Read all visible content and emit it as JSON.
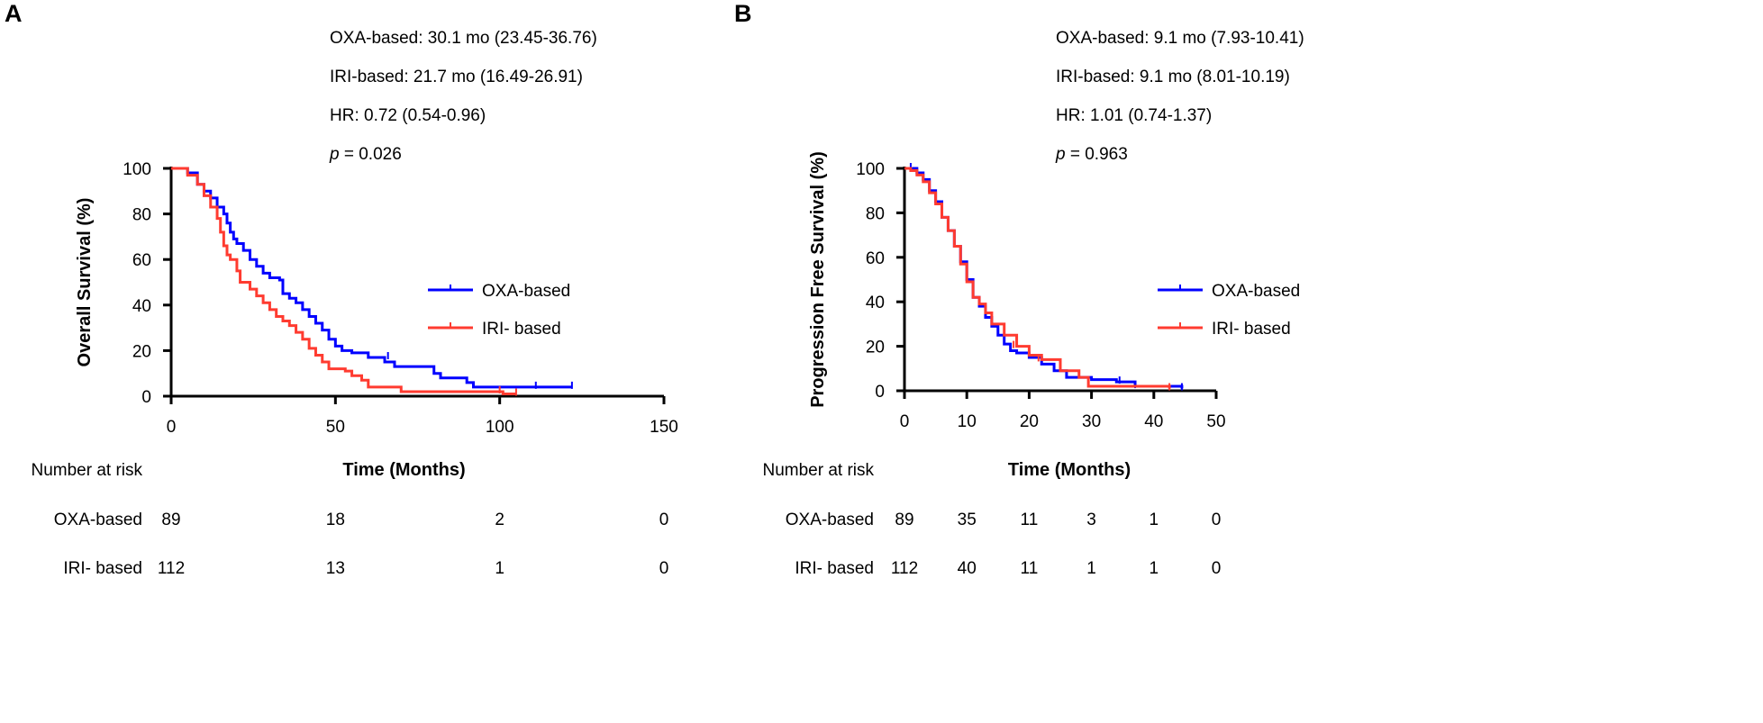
{
  "colors": {
    "oxa": "#0000ff",
    "iri": "#ff3b30"
  },
  "chart_data": [
    {
      "panel": "A",
      "type": "line",
      "ylabel": "Overall Survival (%)",
      "xlabel": "Time (Months)",
      "xlim": [
        0,
        150
      ],
      "ylim": [
        0,
        100
      ],
      "xticks": [
        "0",
        "50",
        "100",
        "150"
      ],
      "yticks": [
        "0",
        "20",
        "40",
        "60",
        "80",
        "100"
      ],
      "stats": [
        "OXA-based: 30.1 mo (23.45-36.76)",
        "IRI-based: 21.7 mo (16.49-26.91)",
        "HR: 0.72 (0.54-0.96)"
      ],
      "p_label": "p",
      "p_value": " = 0.026",
      "legend": [
        "OXA-based",
        "IRI- based"
      ],
      "legend_position": "center-right",
      "series": [
        {
          "name": "OXA-based",
          "x": [
            0,
            5,
            8,
            10,
            12,
            14,
            16,
            17,
            18,
            19,
            20,
            22,
            24,
            26,
            28,
            30,
            33,
            34,
            36,
            38,
            40,
            42,
            44,
            46,
            48,
            50,
            52,
            55,
            60,
            65,
            68,
            75,
            80,
            82,
            90,
            92,
            122
          ],
          "y": [
            100,
            98,
            93,
            90,
            87,
            83,
            80,
            76,
            72,
            69,
            67,
            64,
            60,
            57,
            54,
            52,
            51,
            45,
            43,
            41,
            38,
            35,
            32,
            29,
            25,
            22,
            20,
            19,
            17,
            15,
            13,
            13,
            10,
            8,
            6,
            4,
            4
          ],
          "censored": [
            [
              66,
              17
            ],
            [
              111,
              4
            ],
            [
              122,
              4
            ]
          ]
        },
        {
          "name": "IRI- based",
          "x": [
            0,
            5,
            8,
            10,
            12,
            14,
            15,
            16,
            17,
            18,
            20,
            21,
            24,
            26,
            28,
            30,
            32,
            34,
            36,
            38,
            40,
            42,
            44,
            46,
            48,
            53,
            55,
            58,
            60,
            62,
            70,
            100,
            101,
            105
          ],
          "y": [
            100,
            97,
            93,
            88,
            83,
            78,
            72,
            66,
            62,
            60,
            55,
            50,
            47,
            44,
            41,
            38,
            35,
            33,
            31,
            28,
            25,
            21,
            18,
            15,
            12,
            11,
            9,
            7,
            4,
            4,
            2,
            2,
            1,
            1
          ],
          "censored": [
            [
              100,
              2
            ],
            [
              105,
              1
            ]
          ]
        }
      ],
      "risk_table": {
        "title": "Number at risk",
        "times": [
          0,
          50,
          100,
          150
        ],
        "rows": [
          {
            "label": "OXA-based",
            "values": [
              "89",
              "18",
              "2",
              "0"
            ]
          },
          {
            "label": "IRI- based",
            "values": [
              "112",
              "13",
              "1",
              "0"
            ]
          }
        ]
      }
    },
    {
      "panel": "B",
      "type": "line",
      "ylabel": "Progression Free Survival (%)",
      "xlabel": "Time (Months)",
      "xlim": [
        0,
        50
      ],
      "ylim": [
        0,
        100
      ],
      "xticks": [
        "0",
        "10",
        "20",
        "30",
        "40",
        "50"
      ],
      "yticks": [
        "0",
        "20",
        "40",
        "60",
        "80",
        "100"
      ],
      "stats": [
        "OXA-based: 9.1 mo (7.93-10.41)",
        "IRI-based: 9.1 mo (8.01-10.19)",
        "HR: 1.01 (0.74-1.37)"
      ],
      "p_label": "p",
      "p_value": " = 0.963",
      "legend": [
        "OXA-based",
        "IRI- based"
      ],
      "legend_position": "center-right",
      "series": [
        {
          "name": "OXA-based",
          "x": [
            0,
            1,
            2,
            3,
            4,
            5,
            6,
            7,
            8,
            9,
            10,
            11,
            12,
            13,
            14,
            15,
            16,
            17,
            18,
            20,
            22,
            24,
            26,
            30,
            34,
            37,
            44.5
          ],
          "y": [
            100,
            100,
            98,
            95,
            90,
            85,
            78,
            72,
            65,
            58,
            50,
            42,
            38,
            33,
            29,
            25,
            21,
            18,
            17,
            15,
            12,
            9,
            6,
            5,
            4,
            2,
            1
          ],
          "censored": [
            [
              1,
              100
            ],
            [
              34.5,
              4
            ],
            [
              37,
              2
            ],
            [
              44.5,
              1
            ]
          ]
        },
        {
          "name": "IRI- based",
          "x": [
            0,
            1,
            2,
            3,
            4,
            5,
            6,
            7,
            8,
            9,
            10,
            11,
            12,
            13,
            14,
            16,
            18,
            20,
            22,
            25,
            28,
            29.5,
            42.5
          ],
          "y": [
            100,
            99,
            97,
            94,
            89,
            84,
            78,
            72,
            65,
            57,
            49,
            42,
            39,
            35,
            30,
            25,
            20,
            16,
            14,
            9,
            6,
            2,
            1
          ],
          "censored": [
            [
              17.5,
              20
            ],
            [
              21.5,
              14
            ],
            [
              42.5,
              1
            ]
          ]
        }
      ],
      "risk_table": {
        "title": "Number at risk",
        "times": [
          0,
          10,
          20,
          30,
          40,
          50
        ],
        "rows": [
          {
            "label": "OXA-based",
            "values": [
              "89",
              "35",
              "11",
              "3",
              "1",
              "0"
            ]
          },
          {
            "label": "IRI- based",
            "values": [
              "112",
              "40",
              "11",
              "1",
              "1",
              "0"
            ]
          }
        ]
      }
    }
  ]
}
